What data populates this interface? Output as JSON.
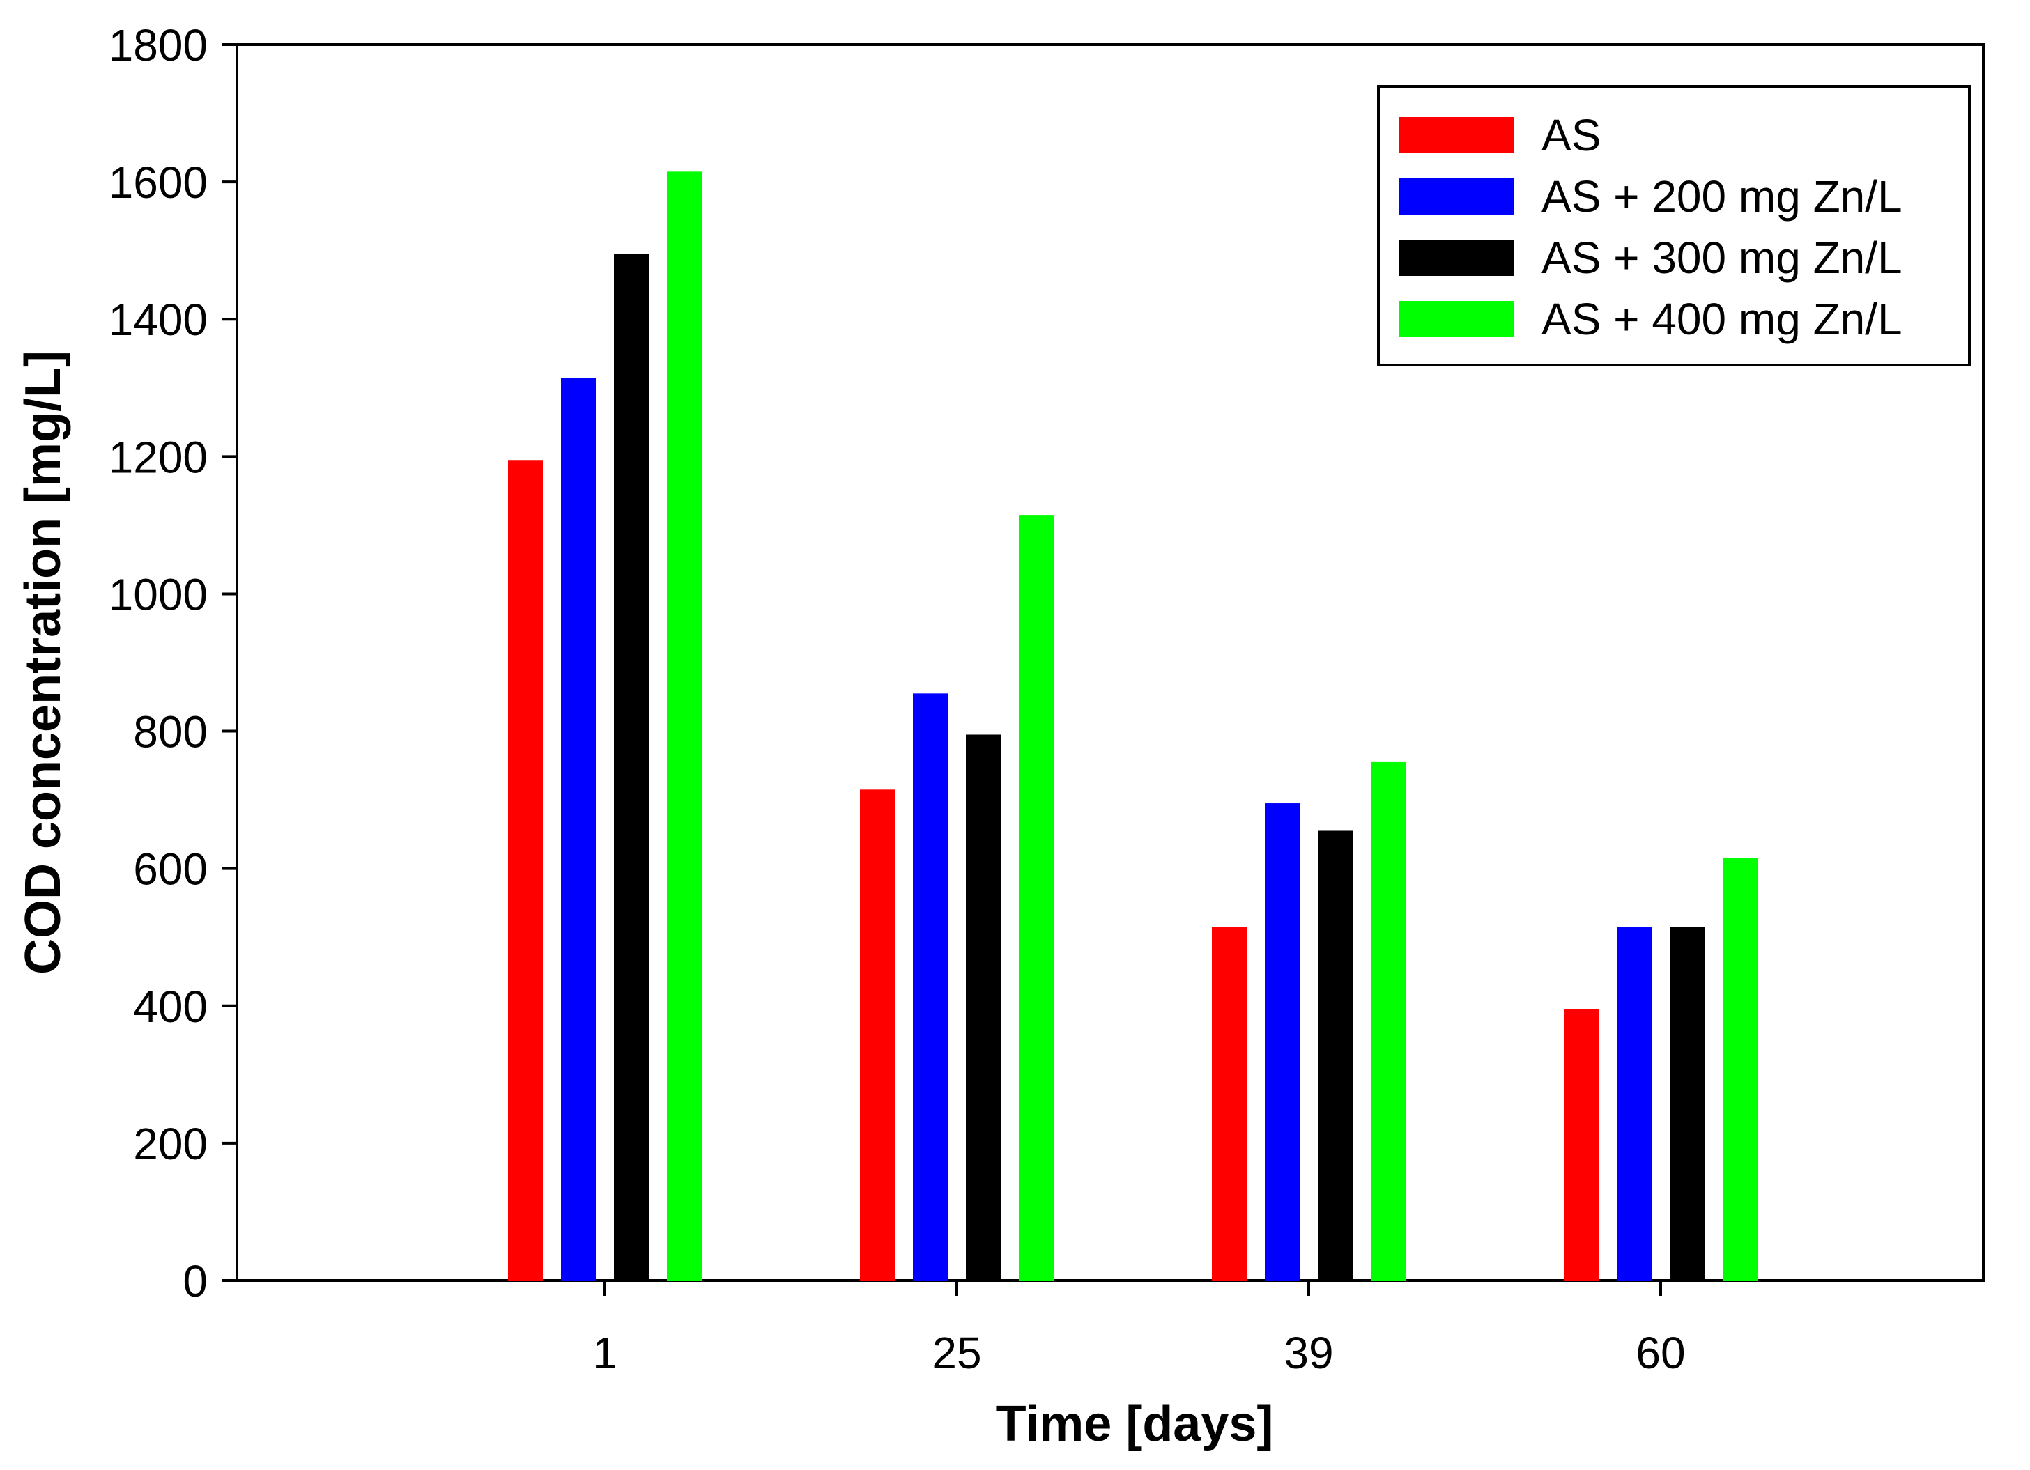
{
  "chart_data": {
    "type": "bar",
    "title": "",
    "xlabel": "Time [days]",
    "ylabel": "COD concentration [mg/L]",
    "categories": [
      "1",
      "25",
      "39",
      "60"
    ],
    "ylim": [
      0,
      1800
    ],
    "yticks": [
      0,
      200,
      400,
      600,
      800,
      1000,
      1200,
      1400,
      1600,
      1800
    ],
    "grid": false,
    "legend_position": "top-right",
    "series": [
      {
        "name": "AS",
        "color": "#ff0000",
        "values": [
          1195,
          715,
          515,
          395
        ]
      },
      {
        "name": "AS + 200 mg Zn/L",
        "color": "#0000ff",
        "values": [
          1315,
          855,
          695,
          515
        ]
      },
      {
        "name": "AS + 300 mg Zn/L",
        "color": "#000000",
        "values": [
          1495,
          795,
          655,
          515
        ]
      },
      {
        "name": "AS + 400 mg Zn/L",
        "color": "#00ff00",
        "values": [
          1615,
          1115,
          755,
          615
        ]
      }
    ]
  }
}
